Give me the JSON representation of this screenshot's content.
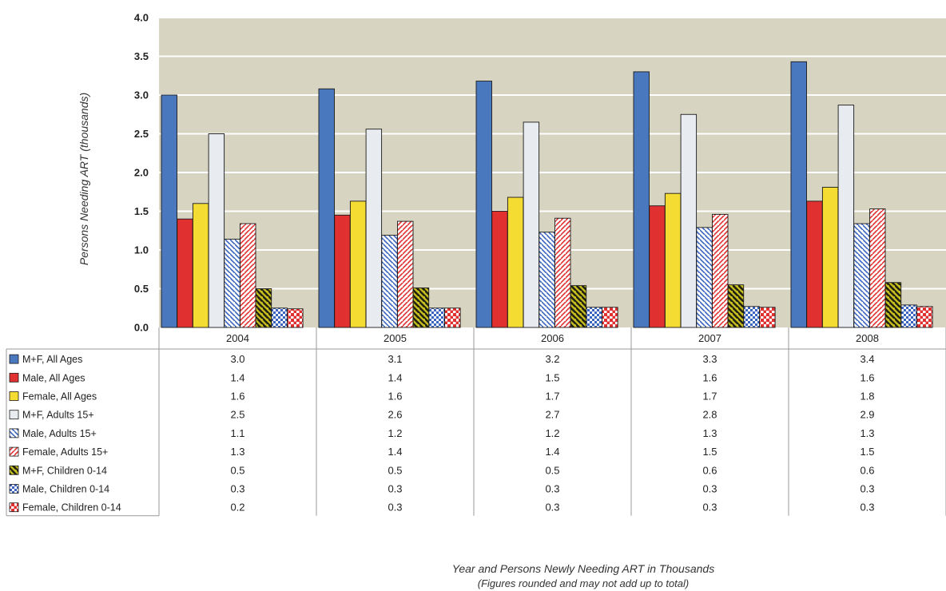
{
  "chart_data": {
    "type": "bar",
    "title": "",
    "ylabel": "Persons Needing ART (thousands)",
    "xlabel": "Year and Persons Newly Needing ART in Thousands",
    "xlabel_note": "(Figures rounded and may not add up to total)",
    "ylim": [
      0,
      4.0
    ],
    "yticks": [
      "0.0",
      "0.5",
      "1.0",
      "1.5",
      "2.0",
      "2.5",
      "3.0",
      "3.5",
      "4.0"
    ],
    "grid": true,
    "categories": [
      "2004",
      "2005",
      "2006",
      "2007",
      "2008"
    ],
    "series": [
      {
        "name": "M+F, All Ages",
        "color": "#4a78bf",
        "pattern": "solid",
        "values": [
          3.0,
          3.08,
          3.18,
          3.3,
          3.43
        ],
        "labels": [
          "3.0",
          "3.1",
          "3.2",
          "3.3",
          "3.4"
        ]
      },
      {
        "name": "Male, All Ages",
        "color": "#e03030",
        "pattern": "solid",
        "values": [
          1.4,
          1.45,
          1.5,
          1.57,
          1.63
        ],
        "labels": [
          "1.4",
          "1.4",
          "1.5",
          "1.6",
          "1.6"
        ]
      },
      {
        "name": "Female, All Ages",
        "color": "#f5dc32",
        "pattern": "solid",
        "values": [
          1.6,
          1.63,
          1.68,
          1.73,
          1.81
        ],
        "labels": [
          "1.6",
          "1.6",
          "1.7",
          "1.7",
          "1.8"
        ]
      },
      {
        "name": "M+F, Adults 15+",
        "color": "#e8ecf0",
        "pattern": "solid",
        "values": [
          2.5,
          2.56,
          2.65,
          2.75,
          2.87
        ],
        "labels": [
          "2.5",
          "2.6",
          "2.7",
          "2.8",
          "2.9"
        ]
      },
      {
        "name": "Male, Adults 15+",
        "color": "#3a64c0",
        "pattern": "hatch-back",
        "values": [
          1.14,
          1.19,
          1.23,
          1.29,
          1.34
        ],
        "labels": [
          "1.1",
          "1.2",
          "1.2",
          "1.3",
          "1.3"
        ]
      },
      {
        "name": "Female, Adults 15+",
        "color": "#e03030",
        "pattern": "hatch-fwd",
        "values": [
          1.34,
          1.37,
          1.41,
          1.46,
          1.53
        ],
        "labels": [
          "1.3",
          "1.4",
          "1.4",
          "1.5",
          "1.5"
        ]
      },
      {
        "name": "M+F, Children 0-14",
        "color": "#3a3a20",
        "pattern": "stripe-dark",
        "values": [
          0.5,
          0.51,
          0.54,
          0.55,
          0.58
        ],
        "labels": [
          "0.5",
          "0.5",
          "0.5",
          "0.6",
          "0.6"
        ]
      },
      {
        "name": "Male, Children 0-14",
        "color": "#3a64c0",
        "pattern": "checker",
        "values": [
          0.25,
          0.25,
          0.26,
          0.27,
          0.29
        ],
        "labels": [
          "0.3",
          "0.3",
          "0.3",
          "0.3",
          "0.3"
        ]
      },
      {
        "name": "Female, Children 0-14",
        "color": "#e03030",
        "pattern": "dots",
        "values": [
          0.24,
          0.25,
          0.26,
          0.26,
          0.27
        ],
        "labels": [
          "0.2",
          "0.3",
          "0.3",
          "0.3",
          "0.3"
        ]
      }
    ]
  }
}
